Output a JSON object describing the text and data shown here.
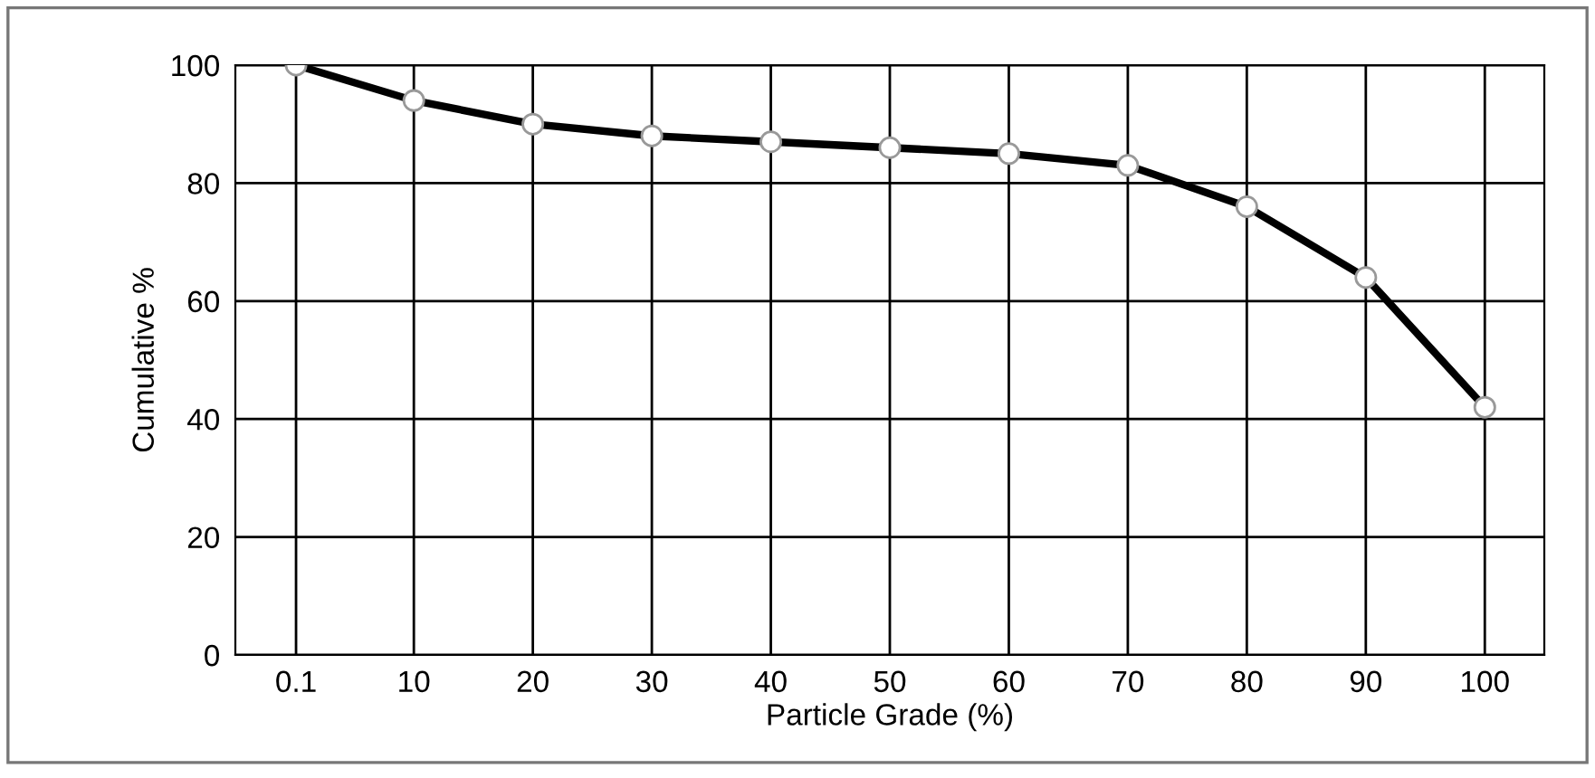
{
  "chart_data": {
    "type": "line",
    "xlabel": "Particle Grade (%)",
    "ylabel": "Cumulative %",
    "x": [
      0.1,
      10,
      20,
      30,
      40,
      50,
      60,
      70,
      80,
      90,
      100
    ],
    "series": [
      {
        "color": "#000000",
        "values": [
          100,
          94,
          90,
          88,
          87,
          86,
          85,
          83,
          76,
          64,
          42
        ]
      }
    ],
    "xlim": [
      -5,
      105
    ],
    "xticks": [
      0.1,
      10,
      20,
      30,
      40,
      50,
      60,
      70,
      80,
      90,
      100
    ],
    "ylim": [
      0,
      100
    ],
    "yticks": [
      0,
      20,
      40,
      60,
      80,
      100
    ],
    "grid": true,
    "marker": "circle",
    "line_style": "solid"
  }
}
